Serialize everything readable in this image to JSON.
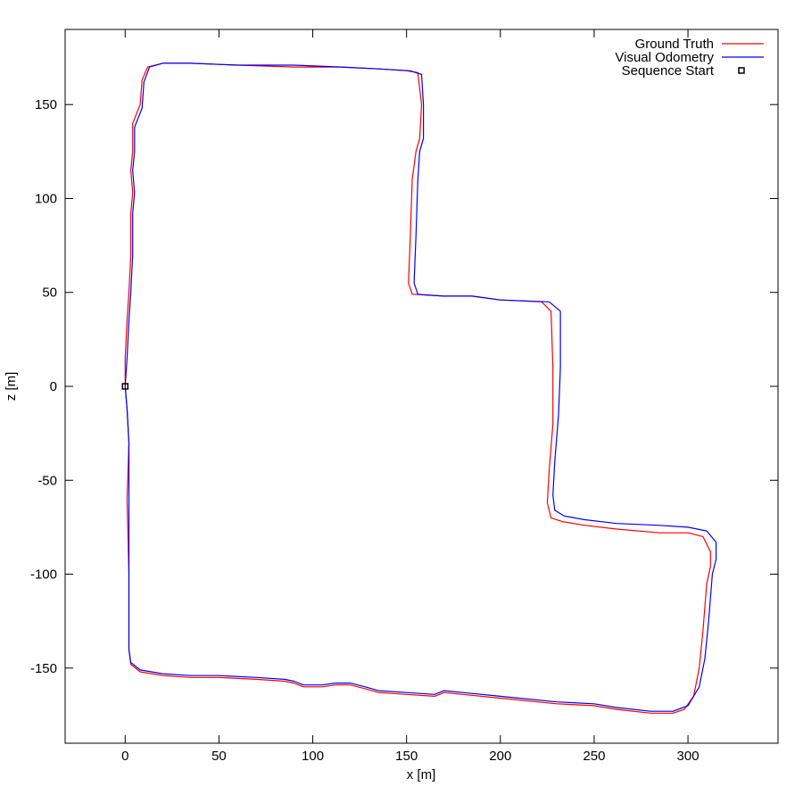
{
  "chart_data": {
    "type": "line",
    "xlabel": "x [m]",
    "ylabel": "z [m]",
    "xlim": [
      -32,
      348
    ],
    "ylim": [
      -190,
      190
    ],
    "xticks": [
      0,
      50,
      100,
      150,
      200,
      250,
      300
    ],
    "yticks": [
      -150,
      -100,
      -50,
      0,
      50,
      100,
      150
    ],
    "grid": false,
    "legend_position": "top-right",
    "series": [
      {
        "name": "Ground Truth",
        "color": "#ff0000",
        "points": [
          [
            0,
            0
          ],
          [
            1,
            -12
          ],
          [
            2,
            -30
          ],
          [
            1,
            -60
          ],
          [
            2,
            -100
          ],
          [
            2,
            -140
          ],
          [
            3,
            -148
          ],
          [
            8,
            -152
          ],
          [
            20,
            -154
          ],
          [
            35,
            -155
          ],
          [
            50,
            -155
          ],
          [
            70,
            -156
          ],
          [
            85,
            -157
          ],
          [
            90,
            -158
          ],
          [
            95,
            -160
          ],
          [
            105,
            -160
          ],
          [
            112,
            -159
          ],
          [
            120,
            -159
          ],
          [
            128,
            -161
          ],
          [
            135,
            -163
          ],
          [
            150,
            -164
          ],
          [
            165,
            -165
          ],
          [
            170,
            -163
          ],
          [
            180,
            -164
          ],
          [
            200,
            -166
          ],
          [
            230,
            -169
          ],
          [
            250,
            -170
          ],
          [
            262,
            -172
          ],
          [
            280,
            -174
          ],
          [
            292,
            -174
          ],
          [
            298,
            -172
          ],
          [
            303,
            -165
          ],
          [
            306,
            -150
          ],
          [
            308,
            -130
          ],
          [
            310,
            -105
          ],
          [
            312,
            -96
          ],
          [
            312,
            -88
          ],
          [
            308,
            -80
          ],
          [
            300,
            -78
          ],
          [
            285,
            -78
          ],
          [
            262,
            -76
          ],
          [
            245,
            -74
          ],
          [
            233,
            -72
          ],
          [
            227,
            -70
          ],
          [
            225,
            -62
          ],
          [
            226,
            -45
          ],
          [
            228,
            -20
          ],
          [
            228,
            10
          ],
          [
            227,
            40
          ],
          [
            222,
            45
          ],
          [
            200,
            46
          ],
          [
            185,
            48
          ],
          [
            170,
            48
          ],
          [
            153,
            49
          ],
          [
            151,
            55
          ],
          [
            152,
            80
          ],
          [
            153,
            110
          ],
          [
            155,
            125
          ],
          [
            157,
            132
          ],
          [
            158,
            150
          ],
          [
            156,
            167
          ],
          [
            150,
            168
          ],
          [
            135,
            169
          ],
          [
            115,
            170
          ],
          [
            90,
            170
          ],
          [
            60,
            171
          ],
          [
            35,
            172
          ],
          [
            20,
            172
          ],
          [
            12,
            170
          ],
          [
            9,
            163
          ],
          [
            8,
            150
          ],
          [
            4,
            140
          ],
          [
            4,
            125
          ],
          [
            3,
            115
          ],
          [
            4,
            103
          ],
          [
            3,
            92
          ],
          [
            3,
            70
          ],
          [
            2,
            50
          ],
          [
            1,
            35
          ],
          [
            0,
            15
          ],
          [
            0,
            0
          ]
        ]
      },
      {
        "name": "Visual Odometry",
        "color": "#0000ff",
        "points": [
          [
            0,
            0
          ],
          [
            1,
            -12
          ],
          [
            2,
            -30
          ],
          [
            2,
            -60
          ],
          [
            2,
            -100
          ],
          [
            2,
            -140
          ],
          [
            3,
            -147
          ],
          [
            8,
            -151
          ],
          [
            20,
            -153
          ],
          [
            35,
            -154
          ],
          [
            50,
            -154
          ],
          [
            70,
            -155
          ],
          [
            85,
            -156
          ],
          [
            90,
            -157
          ],
          [
            95,
            -159
          ],
          [
            105,
            -159
          ],
          [
            112,
            -158
          ],
          [
            120,
            -158
          ],
          [
            128,
            -160
          ],
          [
            135,
            -162
          ],
          [
            150,
            -163
          ],
          [
            165,
            -164
          ],
          [
            170,
            -162
          ],
          [
            180,
            -163
          ],
          [
            200,
            -165
          ],
          [
            230,
            -168
          ],
          [
            250,
            -169
          ],
          [
            262,
            -171
          ],
          [
            280,
            -173
          ],
          [
            292,
            -173
          ],
          [
            300,
            -170
          ],
          [
            306,
            -160
          ],
          [
            309,
            -145
          ],
          [
            311,
            -125
          ],
          [
            313,
            -100
          ],
          [
            315,
            -92
          ],
          [
            315,
            -83
          ],
          [
            310,
            -77
          ],
          [
            300,
            -75
          ],
          [
            285,
            -74
          ],
          [
            262,
            -73
          ],
          [
            245,
            -71
          ],
          [
            234,
            -69
          ],
          [
            229,
            -66
          ],
          [
            228,
            -58
          ],
          [
            229,
            -40
          ],
          [
            231,
            -15
          ],
          [
            232,
            10
          ],
          [
            232,
            40
          ],
          [
            226,
            45
          ],
          [
            200,
            46
          ],
          [
            185,
            48
          ],
          [
            170,
            48
          ],
          [
            156,
            49
          ],
          [
            154,
            55
          ],
          [
            155,
            80
          ],
          [
            156,
            110
          ],
          [
            157,
            125
          ],
          [
            159,
            132
          ],
          [
            159,
            150
          ],
          [
            158,
            166
          ],
          [
            152,
            168
          ],
          [
            135,
            169
          ],
          [
            115,
            170
          ],
          [
            90,
            171
          ],
          [
            60,
            171
          ],
          [
            35,
            172
          ],
          [
            20,
            172
          ],
          [
            13,
            170
          ],
          [
            10,
            162
          ],
          [
            9,
            148
          ],
          [
            5,
            138
          ],
          [
            5,
            125
          ],
          [
            4,
            115
          ],
          [
            5,
            103
          ],
          [
            4,
            92
          ],
          [
            4,
            70
          ],
          [
            3,
            50
          ],
          [
            2,
            35
          ],
          [
            1,
            15
          ],
          [
            0,
            0
          ]
        ]
      }
    ],
    "marker": {
      "name": "Sequence Start",
      "shape": "square",
      "color": "#000000",
      "point": [
        0,
        0
      ]
    }
  }
}
